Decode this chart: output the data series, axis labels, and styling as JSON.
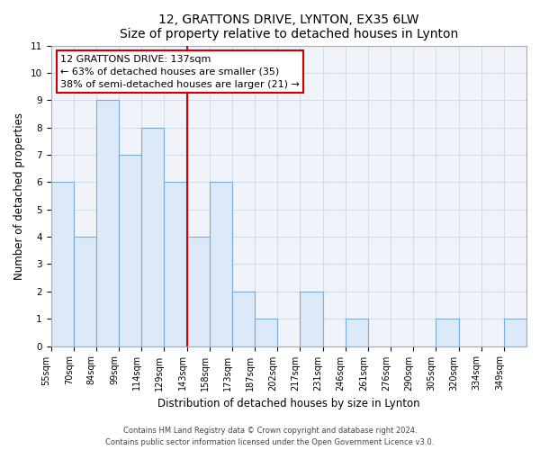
{
  "title": "12, GRATTONS DRIVE, LYNTON, EX35 6LW",
  "subtitle": "Size of property relative to detached houses in Lynton",
  "xlabel": "Distribution of detached houses by size in Lynton",
  "ylabel": "Number of detached properties",
  "bin_labels": [
    "55sqm",
    "70sqm",
    "84sqm",
    "99sqm",
    "114sqm",
    "129sqm",
    "143sqm",
    "158sqm",
    "173sqm",
    "187sqm",
    "202sqm",
    "217sqm",
    "231sqm",
    "246sqm",
    "261sqm",
    "276sqm",
    "290sqm",
    "305sqm",
    "320sqm",
    "334sqm",
    "349sqm"
  ],
  "bar_heights": [
    6,
    4,
    9,
    7,
    8,
    6,
    4,
    6,
    2,
    1,
    0,
    2,
    0,
    1,
    0,
    0,
    0,
    1,
    0,
    0,
    1
  ],
  "bar_color": "#dce9f8",
  "bar_edge_color": "#7aadd4",
  "grid_color": "#d0dce8",
  "vline_bin_index": 6,
  "annotation_title": "12 GRATTONS DRIVE: 137sqm",
  "annotation_line1": "← 63% of detached houses are smaller (35)",
  "annotation_line2": "38% of semi-detached houses are larger (21) →",
  "annotation_box_color": "#ffffff",
  "annotation_box_edge": "#cc0000",
  "vline_color": "#cc0000",
  "ylim": [
    0,
    11
  ],
  "yticks": [
    0,
    1,
    2,
    3,
    4,
    5,
    6,
    7,
    8,
    9,
    10,
    11
  ],
  "footer1": "Contains HM Land Registry data © Crown copyright and database right 2024.",
  "footer2": "Contains public sector information licensed under the Open Government Licence v3.0.",
  "bg_color": "#f0f4fa"
}
